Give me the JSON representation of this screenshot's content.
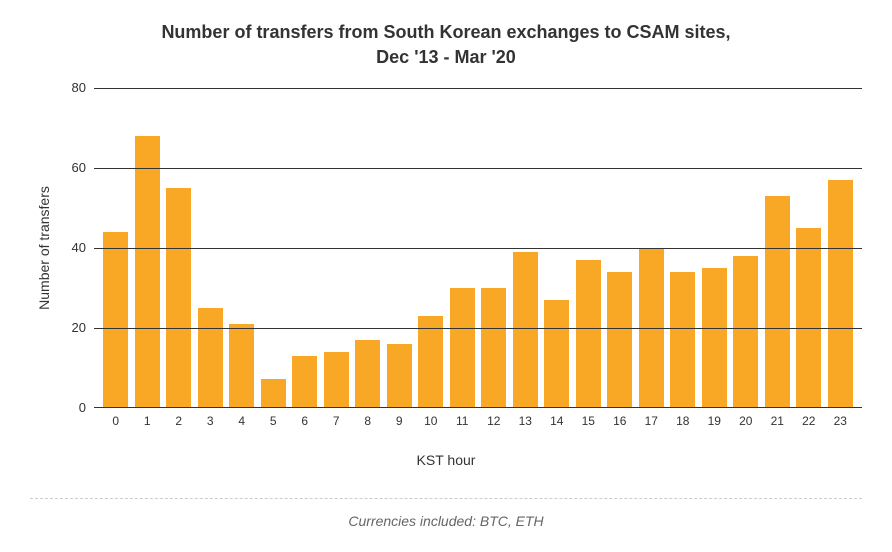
{
  "chart": {
    "type": "bar",
    "title_line1": "Number of transfers from South Korean exchanges to CSAM sites,",
    "title_line2": "Dec '13 - Mar '20",
    "title_fontsize": 18,
    "title_color": "#333333",
    "xlabel": "KST hour",
    "ylabel": "Number of transfers",
    "label_fontsize": 14,
    "label_color": "#333333",
    "categories": [
      "0",
      "1",
      "2",
      "3",
      "4",
      "5",
      "6",
      "7",
      "8",
      "9",
      "10",
      "11",
      "12",
      "13",
      "14",
      "15",
      "16",
      "17",
      "18",
      "19",
      "20",
      "21",
      "22",
      "23"
    ],
    "values": [
      44,
      68,
      55,
      25,
      21,
      7,
      13,
      14,
      17,
      16,
      23,
      30,
      30,
      39,
      27,
      37,
      34,
      40,
      34,
      35,
      38,
      53,
      45,
      57
    ],
    "bar_color": "#f9a825",
    "bar_width": 0.78,
    "ylim": [
      0,
      80
    ],
    "ytick_step": 20,
    "yticks": [
      0,
      20,
      40,
      60,
      80
    ],
    "grid_color": "#333333",
    "grid_on": true,
    "background_color": "#ffffff",
    "tick_fontsize": 13,
    "tick_color": "#333333"
  },
  "footnote": "Currencies included: BTC, ETH",
  "footnote_color": "#666666",
  "footnote_fontsize": 14,
  "divider_color": "#cccccc"
}
